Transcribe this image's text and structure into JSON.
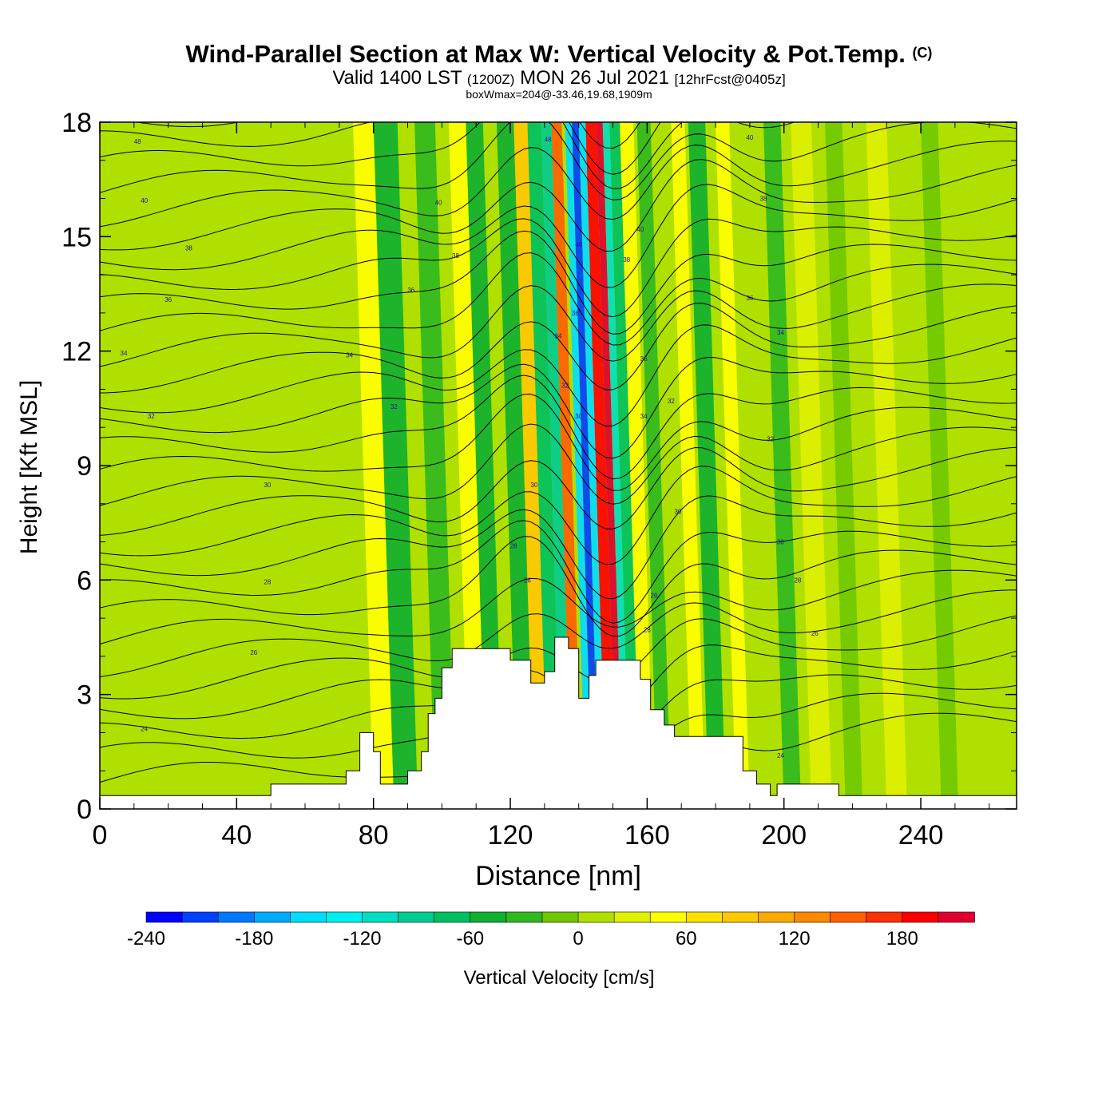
{
  "header": {
    "title": "Wind-Parallel Section at Max W: Vertical Velocity & Pot.Temp.",
    "copyright": "(C)",
    "valid_prefix": "Valid 1400 LST",
    "valid_zulu": "(1200Z)",
    "valid_date": "MON 26 Jul 2021",
    "forecast": "[12hrFcst@0405z]",
    "box_info": "boxWmax=204@-33.46,19.68,1909m"
  },
  "chart_data": {
    "type": "heatmap",
    "title": "Wind-Parallel Section at Max W: Vertical Velocity & Pot.Temp.",
    "xlabel": "Distance [nm]",
    "ylabel": "Height [Kft MSL]",
    "xlim": [
      0,
      268
    ],
    "ylim": [
      0,
      18
    ],
    "x_ticks": [
      "0",
      "40",
      "80",
      "120",
      "160",
      "200",
      "240"
    ],
    "y_ticks": [
      "0",
      "3",
      "6",
      "9",
      "12",
      "15",
      "18"
    ],
    "colorbar": {
      "label": "Vertical Velocity [cm/s]",
      "tick_labels": [
        "-240",
        "-180",
        "-120",
        "-60",
        "0",
        "60",
        "120",
        "180"
      ],
      "min": -240,
      "max": 220,
      "step": 20,
      "colors": [
        "#0000ff",
        "#0040ff",
        "#0078ff",
        "#00aaff",
        "#00ddff",
        "#00f0f0",
        "#00e0c0",
        "#00cc90",
        "#00c060",
        "#10b030",
        "#30b820",
        "#70c800",
        "#b0e000",
        "#e0f000",
        "#ffff00",
        "#ffe000",
        "#ffc800",
        "#ffaa00",
        "#ff8800",
        "#ff6000",
        "#ff3000",
        "#ff0000",
        "#e00030"
      ]
    },
    "background_value": 0,
    "velocity_bands": [
      {
        "x": 80,
        "w": 6,
        "value": 40
      },
      {
        "x": 86,
        "w": 7,
        "value": -60
      },
      {
        "x": 98,
        "w": 6,
        "value": -40
      },
      {
        "x": 108,
        "w": 5,
        "value": 50
      },
      {
        "x": 113,
        "w": 5,
        "value": -50
      },
      {
        "x": 122,
        "w": 5,
        "value": -60
      },
      {
        "x": 127,
        "w": 4,
        "value": 80
      },
      {
        "x": 131,
        "w": 4,
        "value": -80
      },
      {
        "x": 135,
        "w": 3,
        "value": -100
      },
      {
        "x": 138,
        "w": 3,
        "value": 140
      },
      {
        "x": 142,
        "w": 2,
        "value": -160
      },
      {
        "x": 144,
        "w": 2,
        "value": -220
      },
      {
        "x": 146,
        "w": 2,
        "value": -160
      },
      {
        "x": 148,
        "w": 3,
        "value": 180
      },
      {
        "x": 151,
        "w": 2,
        "value": 200
      },
      {
        "x": 153,
        "w": 2,
        "value": -120
      },
      {
        "x": 155,
        "w": 3,
        "value": -80
      },
      {
        "x": 158,
        "w": 4,
        "value": 40
      },
      {
        "x": 163,
        "w": 4,
        "value": -40
      },
      {
        "x": 173,
        "w": 4,
        "value": 50
      },
      {
        "x": 178,
        "w": 5,
        "value": -60
      },
      {
        "x": 186,
        "w": 4,
        "value": 40
      },
      {
        "x": 200,
        "w": 5,
        "value": -30
      },
      {
        "x": 208,
        "w": 6,
        "value": 30
      },
      {
        "x": 218,
        "w": 5,
        "value": -20
      },
      {
        "x": 230,
        "w": 6,
        "value": 20
      },
      {
        "x": 246,
        "w": 5,
        "value": -20
      }
    ],
    "terrain": [
      [
        0,
        0.35
      ],
      [
        50,
        0.35
      ],
      [
        50,
        0.65
      ],
      [
        72,
        0.65
      ],
      [
        72,
        1.0
      ],
      [
        76,
        1.0
      ],
      [
        76,
        2.0
      ],
      [
        80,
        2.0
      ],
      [
        80,
        1.5
      ],
      [
        82,
        1.5
      ],
      [
        82,
        0.65
      ],
      [
        90,
        0.65
      ],
      [
        90,
        1.0
      ],
      [
        94,
        1.0
      ],
      [
        94,
        1.5
      ],
      [
        96,
        1.5
      ],
      [
        96,
        2.5
      ],
      [
        98,
        2.5
      ],
      [
        98,
        2.9
      ],
      [
        100,
        2.9
      ],
      [
        100,
        3.7
      ],
      [
        103,
        3.7
      ],
      [
        103,
        4.2
      ],
      [
        120,
        4.2
      ],
      [
        120,
        3.9
      ],
      [
        126,
        3.9
      ],
      [
        126,
        3.3
      ],
      [
        130,
        3.3
      ],
      [
        130,
        3.6
      ],
      [
        133,
        3.6
      ],
      [
        133,
        4.5
      ],
      [
        137,
        4.5
      ],
      [
        137,
        4.2
      ],
      [
        140,
        4.2
      ],
      [
        140,
        2.9
      ],
      [
        143,
        2.9
      ],
      [
        143,
        3.5
      ],
      [
        145,
        3.5
      ],
      [
        145,
        3.9
      ],
      [
        158,
        3.9
      ],
      [
        158,
        3.4
      ],
      [
        161,
        3.4
      ],
      [
        161,
        2.6
      ],
      [
        165,
        2.6
      ],
      [
        165,
        2.2
      ],
      [
        168,
        2.2
      ],
      [
        168,
        1.9
      ],
      [
        188,
        1.9
      ],
      [
        188,
        1.0
      ],
      [
        192,
        1.0
      ],
      [
        192,
        0.65
      ],
      [
        196,
        0.65
      ],
      [
        196,
        0.35
      ],
      [
        198,
        0.35
      ],
      [
        198,
        0.65
      ],
      [
        216,
        0.65
      ],
      [
        216,
        0.35
      ],
      [
        268,
        0.35
      ]
    ],
    "theta_labels": [
      {
        "x": 11,
        "y": 17.5,
        "text": "48"
      },
      {
        "x": 13,
        "y": 15.95,
        "text": "40"
      },
      {
        "x": 26,
        "y": 14.7,
        "text": "38"
      },
      {
        "x": 20,
        "y": 13.35,
        "text": "36"
      },
      {
        "x": 7,
        "y": 11.95,
        "text": "34"
      },
      {
        "x": 15,
        "y": 10.3,
        "text": "32"
      },
      {
        "x": 49,
        "y": 8.5,
        "text": "30"
      },
      {
        "x": 49,
        "y": 5.95,
        "text": "28"
      },
      {
        "x": 45,
        "y": 4.1,
        "text": "26"
      },
      {
        "x": 13,
        "y": 2.1,
        "text": "24"
      },
      {
        "x": 73,
        "y": 11.9,
        "text": "34"
      },
      {
        "x": 86,
        "y": 10.55,
        "text": "32"
      },
      {
        "x": 91,
        "y": 13.6,
        "text": "36"
      },
      {
        "x": 99,
        "y": 15.9,
        "text": "40"
      },
      {
        "x": 104,
        "y": 14.5,
        "text": "38"
      },
      {
        "x": 121,
        "y": 6.9,
        "text": "28"
      },
      {
        "x": 125,
        "y": 6.0,
        "text": "26"
      },
      {
        "x": 127,
        "y": 8.5,
        "text": "30"
      },
      {
        "x": 131,
        "y": 17.55,
        "text": "48"
      },
      {
        "x": 134,
        "y": 12.4,
        "text": "34"
      },
      {
        "x": 136,
        "y": 11.1,
        "text": "32"
      },
      {
        "x": 139,
        "y": 13.0,
        "text": "36"
      },
      {
        "x": 140,
        "y": 14.8,
        "text": "40"
      },
      {
        "x": 140,
        "y": 10.3,
        "text": "30"
      },
      {
        "x": 154,
        "y": 14.4,
        "text": "38"
      },
      {
        "x": 158,
        "y": 15.2,
        "text": "40"
      },
      {
        "x": 159,
        "y": 11.8,
        "text": "36"
      },
      {
        "x": 159,
        "y": 10.3,
        "text": "34"
      },
      {
        "x": 162,
        "y": 5.6,
        "text": "26"
      },
      {
        "x": 160,
        "y": 4.7,
        "text": "28"
      },
      {
        "x": 167,
        "y": 10.7,
        "text": "32"
      },
      {
        "x": 169,
        "y": 7.8,
        "text": "30"
      },
      {
        "x": 190,
        "y": 17.6,
        "text": "40"
      },
      {
        "x": 194,
        "y": 16.0,
        "text": "38"
      },
      {
        "x": 190,
        "y": 13.4,
        "text": "36"
      },
      {
        "x": 199,
        "y": 12.5,
        "text": "34"
      },
      {
        "x": 196,
        "y": 9.7,
        "text": "32"
      },
      {
        "x": 199,
        "y": 7.0,
        "text": "30"
      },
      {
        "x": 204,
        "y": 6.0,
        "text": "28"
      },
      {
        "x": 209,
        "y": 4.6,
        "text": "26"
      },
      {
        "x": 199,
        "y": 1.4,
        "text": "24"
      }
    ]
  }
}
